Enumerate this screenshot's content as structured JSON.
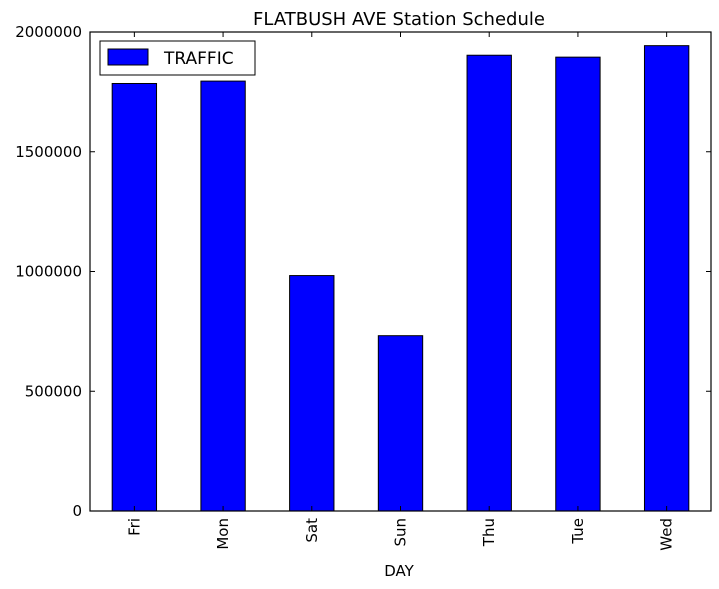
{
  "chart_data": {
    "type": "bar",
    "title": "FLATBUSH AVE Station Schedule",
    "xlabel": "DAY",
    "ylabel": "",
    "categories": [
      "Fri",
      "Mon",
      "Sat",
      "Sun",
      "Thu",
      "Tue",
      "Wed"
    ],
    "series": [
      {
        "name": "TRAFFIC",
        "color": "#0000ff",
        "values": [
          1785000,
          1795000,
          983000,
          732000,
          1903000,
          1895000,
          1943000
        ]
      }
    ],
    "ylim": [
      0,
      2000000
    ],
    "yticks": [
      "0",
      "500000",
      "1000000",
      "1500000",
      "2000000"
    ],
    "grid": false,
    "legend_position": "top-left"
  }
}
